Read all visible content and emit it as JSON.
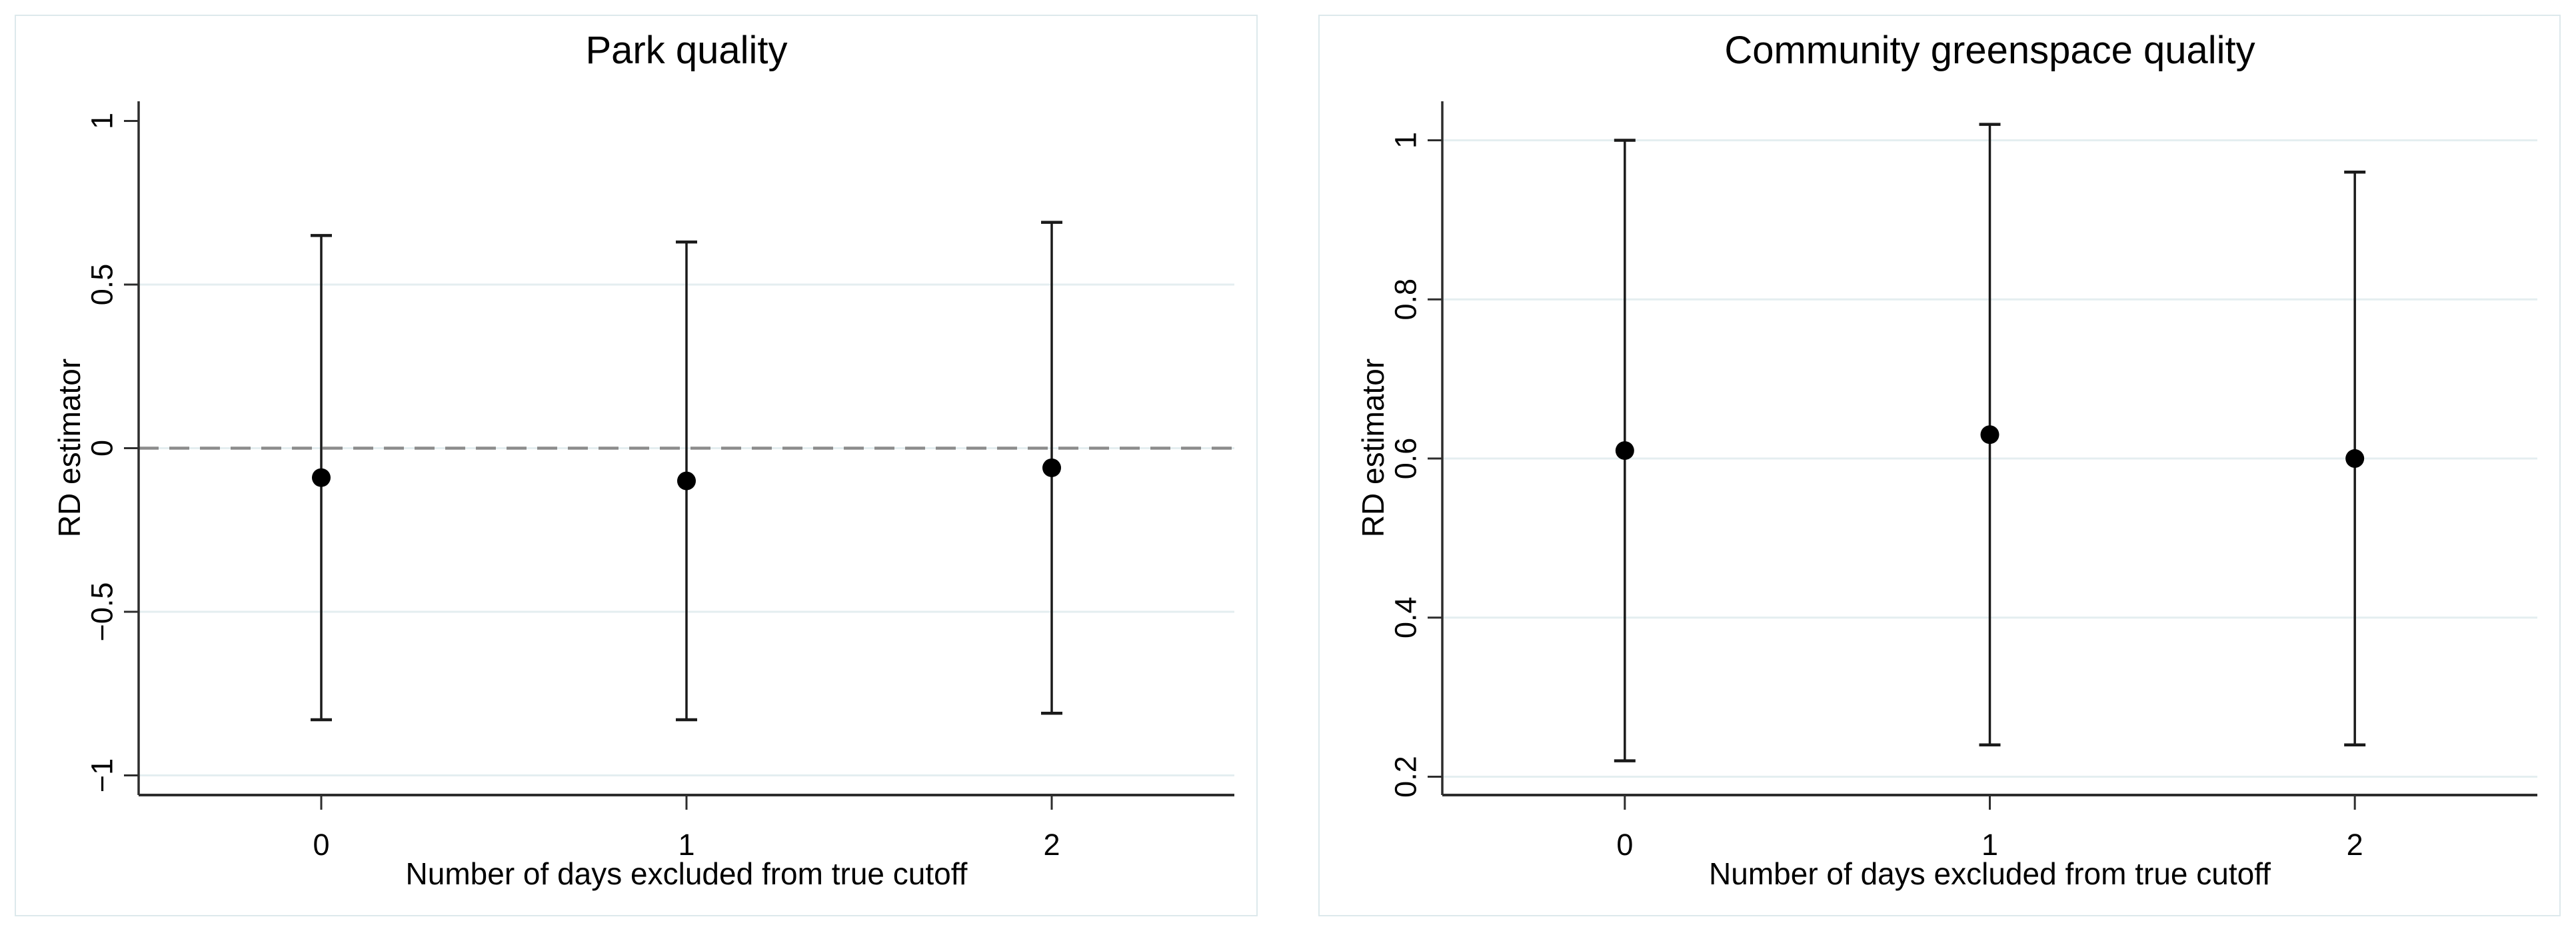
{
  "figure": {
    "name": "RD estimator robustness (donut) plots",
    "background": "#ffffff"
  },
  "colors": {
    "background": "#ffffff",
    "panel_border": "#dde9ec",
    "grid": "#e4eef0",
    "axis": "#2d2d2d",
    "text": "#000000",
    "marker": "#000000",
    "error_bar": "#1a1a1a",
    "reference_line": "#8c8c8c"
  },
  "chart_data": [
    {
      "type": "scatter",
      "title": "Park quality",
      "xlabel": "Number of days excluded from true cutoff",
      "ylabel": "RD estimator",
      "categories": [
        "0",
        "1",
        "2"
      ],
      "estimates": [
        -0.09,
        -0.1,
        -0.06
      ],
      "ci_low": [
        -0.83,
        -0.83,
        -0.81
      ],
      "ci_high": [
        0.65,
        0.63,
        0.69
      ],
      "ytick_values": [
        1,
        0.5,
        0,
        -0.5,
        -1
      ],
      "ytick_labels": [
        "1",
        "0.5",
        "0",
        "−0.5",
        "−1"
      ],
      "ylim": [
        -1.06,
        1.06
      ],
      "grid_values": [
        0.5,
        0,
        -0.5,
        -1
      ],
      "reference_line_value": 0,
      "legend": "none",
      "grid": "on"
    },
    {
      "type": "scatter",
      "title": "Community greenspace quality",
      "xlabel": "Number of days excluded from true cutoff",
      "ylabel": "RD estimator",
      "categories": [
        "0",
        "1",
        "2"
      ],
      "estimates": [
        0.61,
        0.63,
        0.6
      ],
      "ci_low": [
        0.22,
        0.24,
        0.24
      ],
      "ci_high": [
        1.0,
        1.02,
        0.96
      ],
      "ytick_values": [
        1,
        0.8,
        0.6,
        0.4,
        0.2
      ],
      "ytick_labels": [
        "1",
        "0.8",
        "0.6",
        "0.4",
        "0.2"
      ],
      "ylim": [
        0.177,
        1.049
      ],
      "grid_values": [
        1,
        0.8,
        0.6,
        0.4,
        0.2
      ],
      "reference_line_value": null,
      "legend": "none",
      "grid": "on"
    }
  ]
}
